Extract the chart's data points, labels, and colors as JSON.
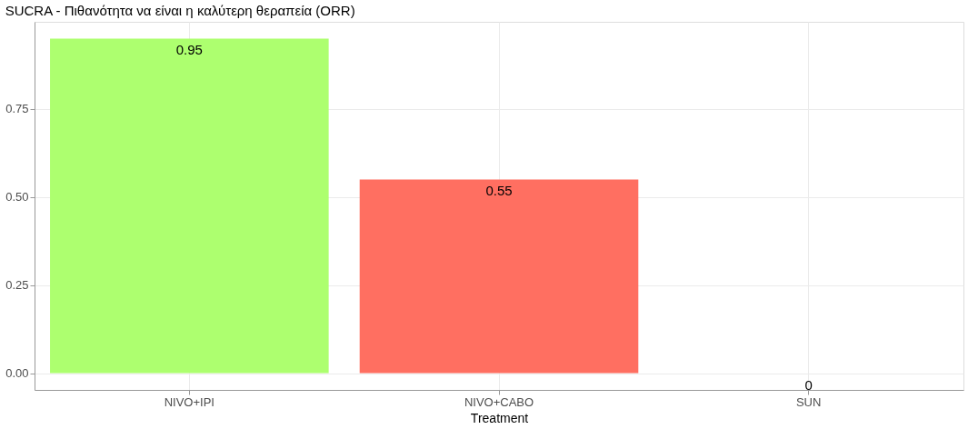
{
  "chart_data": {
    "type": "bar",
    "title": "SUCRA - Πιθανότητα να είναι η καλύτερη θεραπεία (ORR)",
    "xlabel": "Treatment",
    "categories": [
      "NIVO+IPI",
      "NIVO+CABO",
      "SUN"
    ],
    "values": [
      0.95,
      0.55,
      0
    ],
    "colors": [
      "#adff6f",
      "#ff6f61",
      "#7cae00"
    ],
    "ylim": [
      -0.0475,
      0.9975
    ],
    "yticks": [
      {
        "value": 0,
        "label": "0.00"
      },
      0.25,
      {
        "value": 0.5,
        "label": "0.50"
      },
      0.75
    ],
    "grid": true,
    "data_labels": true
  }
}
